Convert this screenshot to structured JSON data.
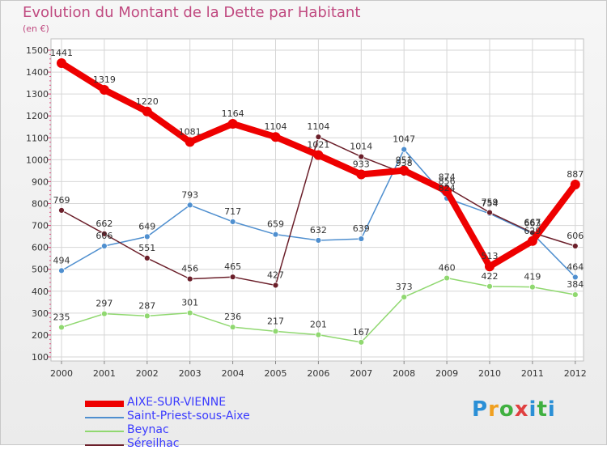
{
  "title": "Evolution du Montant de la Dette par Habitant",
  "subtitle": "(en €)",
  "logo": "Proxiti",
  "chart_data": {
    "type": "line",
    "x": [
      "2000",
      "2001",
      "2002",
      "2003",
      "2004",
      "2005",
      "2006",
      "2007",
      "2008",
      "2009",
      "2010",
      "2011",
      "2012"
    ],
    "yticks": [
      100,
      200,
      300,
      400,
      500,
      600,
      700,
      800,
      900,
      1000,
      1100,
      1200,
      1300,
      1400,
      1500
    ],
    "ylim": [
      100,
      1500
    ],
    "grid": true,
    "legend_position": "bottom-left",
    "series": [
      {
        "name": "AIXE-SUR-VIENNE",
        "color": "#ee0000",
        "values": [
          1441,
          1319,
          1220,
          1081,
          1164,
          1104,
          1021,
          933,
          951,
          856,
          513,
          629,
          887
        ]
      },
      {
        "name": "Saint-Priest-sous-Aixe",
        "color": "#4f8fcf",
        "values": [
          494,
          606,
          649,
          793,
          717,
          659,
          632,
          639,
          1047,
          824,
          754,
          663,
          464
        ]
      },
      {
        "name": "Beynac",
        "color": "#90d870",
        "values": [
          235,
          297,
          287,
          301,
          236,
          217,
          201,
          167,
          373,
          460,
          422,
          419,
          384
        ]
      },
      {
        "name": "Séreilhac",
        "color": "#6b1f2a",
        "values": [
          769,
          662,
          551,
          456,
          465,
          427,
          1104,
          1014,
          938,
          874,
          759,
          667,
          606
        ]
      }
    ]
  }
}
